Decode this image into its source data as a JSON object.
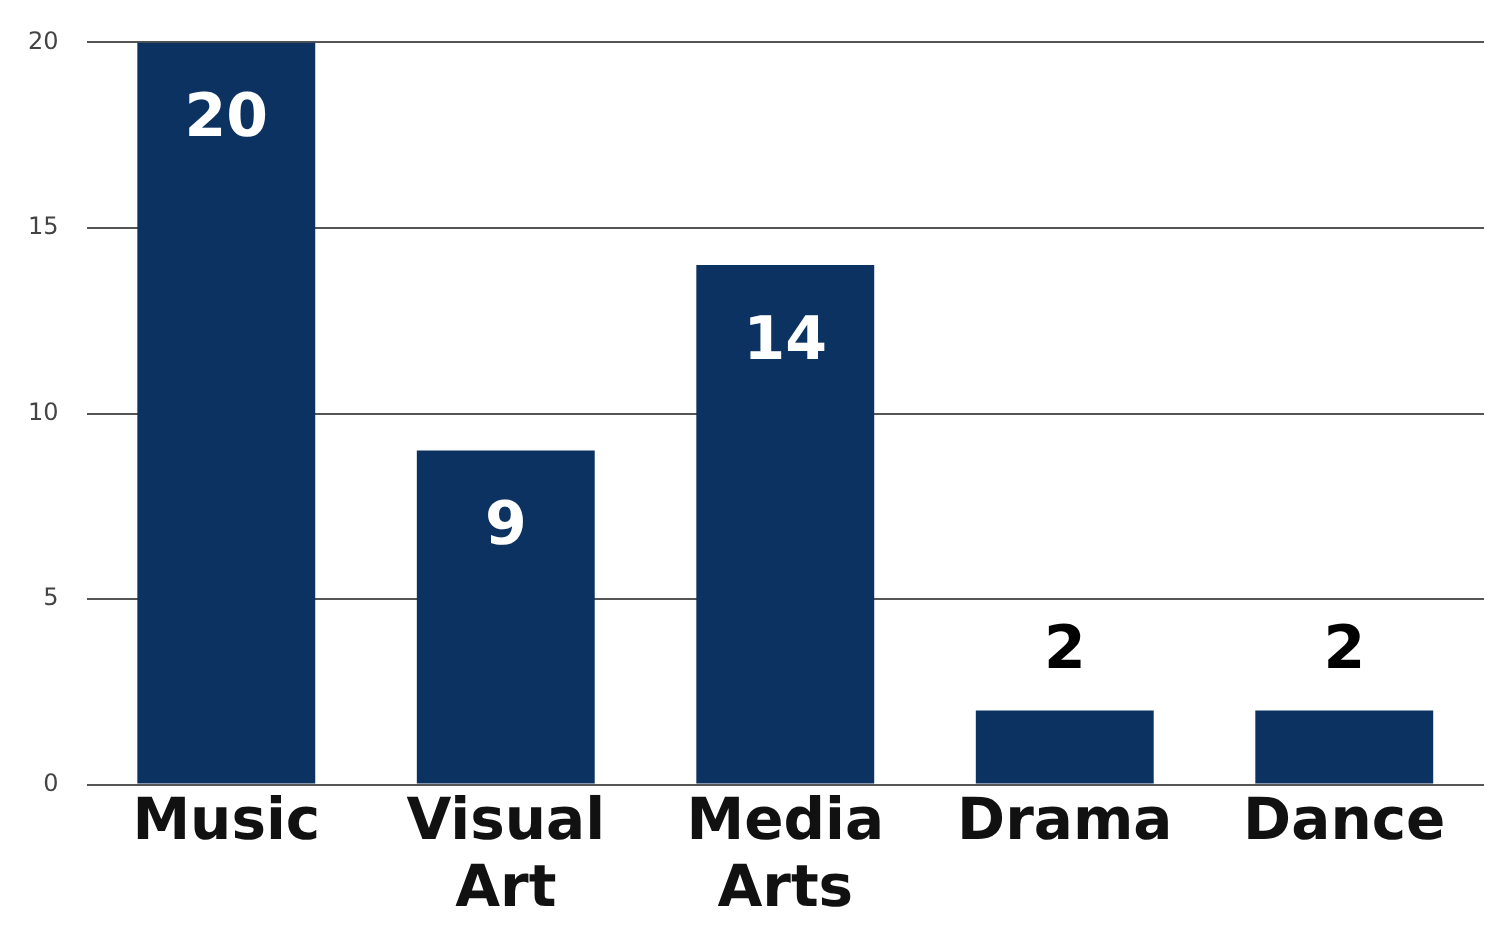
{
  "chart_data": {
    "type": "bar",
    "categories": [
      "Music",
      "Visual Art",
      "Media Arts",
      "Drama",
      "Dance"
    ],
    "values": [
      20,
      9,
      14,
      2,
      2
    ],
    "color": "#0b3261",
    "ylim": [
      0,
      20
    ],
    "yticks": [
      0,
      5,
      10,
      15,
      20
    ],
    "grid": "y",
    "data_labels": true
  }
}
